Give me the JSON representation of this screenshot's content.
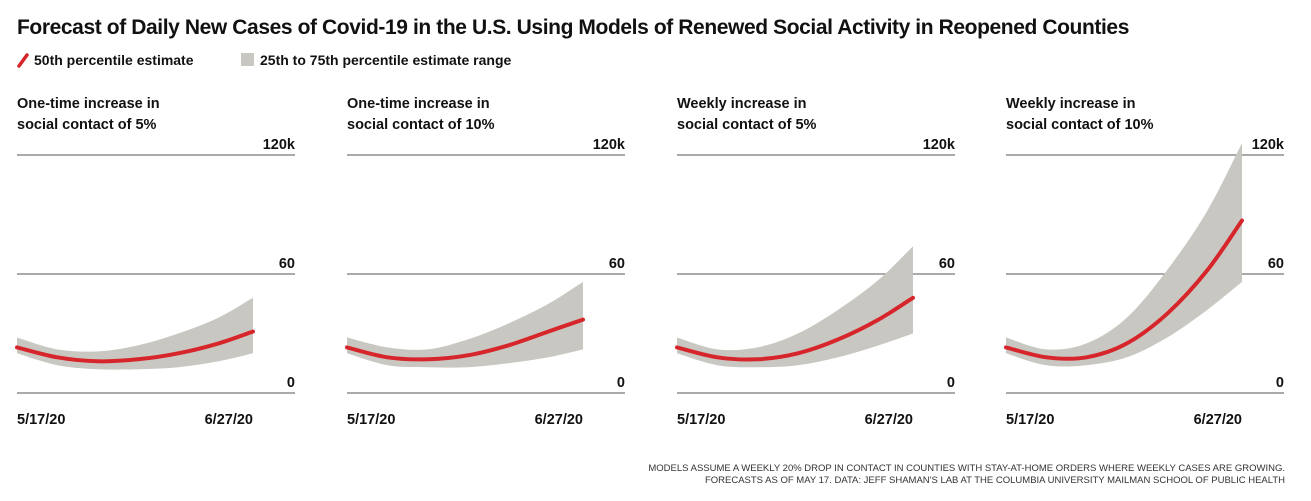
{
  "title": "Forecast of Daily New Cases of Covid-19 in the U.S. Using Models of Renewed Social Activity in Reopened Counties",
  "notes": [
    "MODELS ASSUME A WEEKLY 20% DROP IN CONTACT IN COUNTIES WITH STAY-AT-HOME ORDERS WHERE WEEKLY CASES ARE GROWING.",
    "FORECASTS AS OF MAY 17. DATA: JEFF SHAMAN'S LAB AT THE COLUMBIA UNIVERSITY MAILMAN SCHOOL OF PUBLIC HEALTH"
  ],
  "chart_data": [
    {
      "type": "line",
      "title": [
        "One-time increase in",
        "social contact of 5%"
      ],
      "x": [
        "5/17/20",
        "5/24/20",
        "5/31/20",
        "6/7/20",
        "6/14/20",
        "6/21/20",
        "6/27/20"
      ],
      "xlim": [
        "5/17/20",
        "6/27/20"
      ],
      "xticks": [
        "5/17/20",
        "6/27/20"
      ],
      "ylim": [
        0,
        120
      ],
      "yticks": [
        0,
        60,
        {
          "value": 120,
          "label": "120k"
        }
      ],
      "grid": true,
      "series": [
        {
          "name": "50th percentile estimate",
          "color": "#d7262b",
          "values": [
            23,
            18,
            16,
            17,
            20,
            25,
            31
          ]
        },
        {
          "name": "25th to 75th percentile estimate range",
          "color": "#c9c7c1",
          "lower": [
            20,
            14,
            12,
            12,
            13,
            16,
            20
          ],
          "upper": [
            28,
            22,
            21,
            24,
            30,
            38,
            48
          ]
        }
      ]
    },
    {
      "type": "line",
      "title": [
        "One-time increase in",
        "social contact of 10%"
      ],
      "x": [
        "5/17/20",
        "5/24/20",
        "5/31/20",
        "6/7/20",
        "6/14/20",
        "6/21/20",
        "6/27/20"
      ],
      "xlim": [
        "5/17/20",
        "6/27/20"
      ],
      "xticks": [
        "5/17/20",
        "6/27/20"
      ],
      "ylim": [
        0,
        120
      ],
      "yticks": [
        0,
        60,
        {
          "value": 120,
          "label": "120k"
        }
      ],
      "grid": true,
      "series": [
        {
          "name": "50th percentile estimate",
          "color": "#d7262b",
          "values": [
            23,
            18,
            17,
            19,
            24,
            31,
            37
          ]
        },
        {
          "name": "25th to 75th percentile estimate range",
          "color": "#c9c7c1",
          "lower": [
            20,
            14,
            13,
            13,
            15,
            18,
            22
          ],
          "upper": [
            28,
            23,
            22,
            27,
            35,
            45,
            56
          ]
        }
      ]
    },
    {
      "type": "line",
      "title": [
        "Weekly increase in",
        "social contact of 5%"
      ],
      "x": [
        "5/17/20",
        "5/24/20",
        "5/31/20",
        "6/7/20",
        "6/14/20",
        "6/21/20",
        "6/27/20"
      ],
      "xlim": [
        "5/17/20",
        "6/27/20"
      ],
      "xticks": [
        "5/17/20",
        "6/27/20"
      ],
      "ylim": [
        0,
        120
      ],
      "yticks": [
        0,
        60,
        {
          "value": 120,
          "label": "120k"
        }
      ],
      "grid": true,
      "series": [
        {
          "name": "50th percentile estimate",
          "color": "#d7262b",
          "values": [
            23,
            18,
            17,
            20,
            27,
            37,
            48
          ]
        },
        {
          "name": "25th to 75th percentile estimate range",
          "color": "#c9c7c1",
          "lower": [
            20,
            14,
            13,
            14,
            18,
            24,
            30
          ],
          "upper": [
            28,
            22,
            23,
            30,
            42,
            57,
            74
          ]
        }
      ]
    },
    {
      "type": "line",
      "title": [
        "Weekly increase in",
        "social contact of 10%"
      ],
      "x": [
        "5/17/20",
        "5/24/20",
        "5/31/20",
        "6/7/20",
        "6/14/20",
        "6/21/20",
        "6/27/20"
      ],
      "xlim": [
        "5/17/20",
        "6/27/20"
      ],
      "xticks": [
        "5/17/20",
        "6/27/20"
      ],
      "ylim": [
        0,
        120
      ],
      "yticks": [
        0,
        60,
        {
          "value": 120,
          "label": "120k"
        }
      ],
      "grid": true,
      "series": [
        {
          "name": "50th percentile estimate",
          "color": "#d7262b",
          "values": [
            23,
            18,
            18,
            25,
            40,
            62,
            87
          ]
        },
        {
          "name": "25th to 75th percentile estimate range",
          "color": "#c9c7c1",
          "lower": [
            20,
            14,
            14,
            18,
            28,
            42,
            56
          ],
          "upper": [
            28,
            22,
            25,
            38,
            62,
            92,
            126
          ]
        }
      ]
    }
  ]
}
